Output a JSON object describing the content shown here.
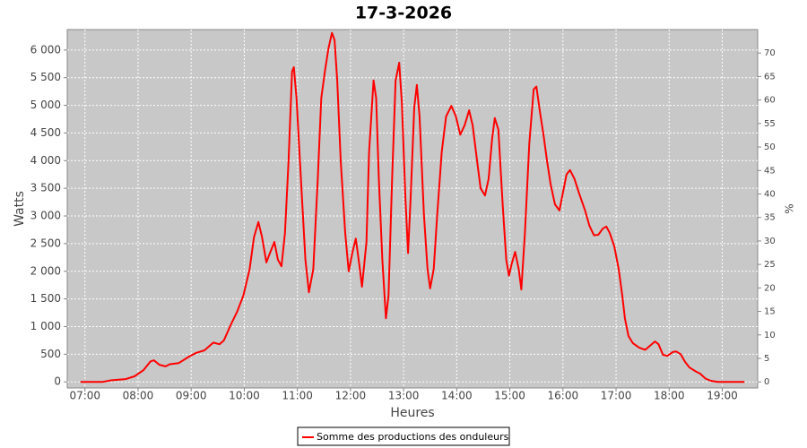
{
  "chart_data": {
    "type": "line",
    "title": "17-3-2026",
    "xlabel": "Heures",
    "ylabel": "Watts",
    "y2label": "%",
    "x": [
      "06:55",
      "07:20",
      "07:30",
      "07:46",
      "07:56",
      "08:06",
      "08:14",
      "08:18",
      "08:24",
      "08:31",
      "08:36",
      "08:46",
      "08:57",
      "09:05",
      "09:15",
      "09:25",
      "09:32",
      "09:37",
      "09:45",
      "09:52",
      "09:59",
      "10:06",
      "10:11",
      "10:16",
      "10:20",
      "10:25",
      "10:28",
      "10:34",
      "10:38",
      "10:42",
      "10:46",
      "10:50",
      "10:54",
      "10:56",
      "10:59",
      "11:04",
      "11:09",
      "11:13",
      "11:18",
      "11:23",
      "11:27",
      "11:31",
      "11:35",
      "11:39",
      "11:42",
      "11:45",
      "11:49",
      "11:54",
      "11:58",
      "12:02",
      "12:06",
      "12:10",
      "12:13",
      "12:18",
      "12:21",
      "12:26",
      "12:29",
      "12:32",
      "12:36",
      "12:40",
      "12:43",
      "12:47",
      "12:51",
      "12:55",
      "12:58",
      "13:02",
      "13:05",
      "13:08",
      "13:12",
      "13:15",
      "13:18",
      "13:23",
      "13:27",
      "13:30",
      "13:34",
      "13:38",
      "13:43",
      "13:48",
      "13:54",
      "13:59",
      "14:04",
      "14:09",
      "14:14",
      "14:18",
      "14:23",
      "14:27",
      "14:32",
      "14:36",
      "14:40",
      "14:43",
      "14:47",
      "14:52",
      "14:56",
      "14:59",
      "15:02",
      "15:06",
      "15:10",
      "15:13",
      "15:17",
      "15:22",
      "15:27",
      "15:30",
      "15:34",
      "15:38",
      "15:42",
      "15:46",
      "15:51",
      "15:56",
      "16:00",
      "16:04",
      "16:08",
      "16:13",
      "16:18",
      "16:25",
      "16:30",
      "16:35",
      "16:40",
      "16:45",
      "16:49",
      "16:53",
      "16:58",
      "17:03",
      "17:07",
      "17:10",
      "17:14",
      "17:19",
      "17:26",
      "17:33",
      "17:38",
      "17:44",
      "17:48",
      "17:53",
      "17:58",
      "18:04",
      "18:08",
      "18:13",
      "18:18",
      "18:23",
      "18:30",
      "18:35",
      "18:41",
      "18:47",
      "18:55",
      "19:25"
    ],
    "series": [
      {
        "name": "Somme des productions des onduleurs",
        "color": "#ff0000",
        "values": [
          0,
          0,
          30,
          50,
          100,
          210,
          370,
          390,
          310,
          280,
          320,
          340,
          450,
          520,
          570,
          710,
          680,
          750,
          1040,
          1270,
          1560,
          2040,
          2620,
          2890,
          2620,
          2160,
          2290,
          2530,
          2210,
          2090,
          2690,
          3990,
          5610,
          5690,
          5130,
          3670,
          2210,
          1620,
          2040,
          3670,
          5130,
          5610,
          6020,
          6310,
          6180,
          5450,
          3990,
          2690,
          2000,
          2330,
          2590,
          2110,
          1720,
          2530,
          4150,
          5450,
          5130,
          3670,
          2210,
          1150,
          1560,
          3670,
          5450,
          5770,
          5040,
          3340,
          2330,
          3340,
          4960,
          5370,
          4800,
          3020,
          2040,
          1690,
          2040,
          3020,
          4150,
          4800,
          4990,
          4800,
          4470,
          4640,
          4910,
          4640,
          3990,
          3500,
          3370,
          3670,
          4390,
          4770,
          4560,
          3180,
          2210,
          1920,
          2130,
          2350,
          2040,
          1670,
          2690,
          4310,
          5290,
          5340,
          4880,
          4470,
          3990,
          3580,
          3210,
          3100,
          3420,
          3750,
          3830,
          3670,
          3420,
          3100,
          2820,
          2650,
          2660,
          2770,
          2810,
          2690,
          2450,
          2040,
          1560,
          1150,
          830,
          700,
          620,
          580,
          650,
          730,
          680,
          490,
          470,
          540,
          550,
          500,
          360,
          260,
          190,
          150,
          60,
          20,
          0,
          0
        ]
      }
    ],
    "xlim": [
      "06:40",
      "19:40"
    ],
    "xticks": [
      "07:00",
      "08:00",
      "09:00",
      "10:00",
      "11:00",
      "12:00",
      "13:00",
      "14:00",
      "15:00",
      "16:00",
      "17:00",
      "18:00",
      "19:00"
    ],
    "ylim": [
      -110,
      6370
    ],
    "yticks": [
      0,
      500,
      {
        "value": 1000,
        "label": "1 000"
      },
      {
        "value": 1500,
        "label": "1 500"
      },
      {
        "value": 2000,
        "label": "2 000"
      },
      {
        "value": 2500,
        "label": "2 500"
      },
      {
        "value": 3000,
        "label": "3 000"
      },
      {
        "value": 3500,
        "label": "3 500"
      },
      {
        "value": 4000,
        "label": "4 000"
      },
      {
        "value": 4500,
        "label": "4 500"
      },
      {
        "value": 5000,
        "label": "5 000"
      },
      {
        "value": 5500,
        "label": "5 500"
      },
      {
        "value": 6000,
        "label": "6 000"
      }
    ],
    "y2lim": [
      -1.3,
      75
    ],
    "y2ticks": [
      0,
      5,
      10,
      15,
      20,
      25,
      30,
      35,
      40,
      45,
      50,
      55,
      60,
      65,
      70
    ],
    "grid": true
  }
}
